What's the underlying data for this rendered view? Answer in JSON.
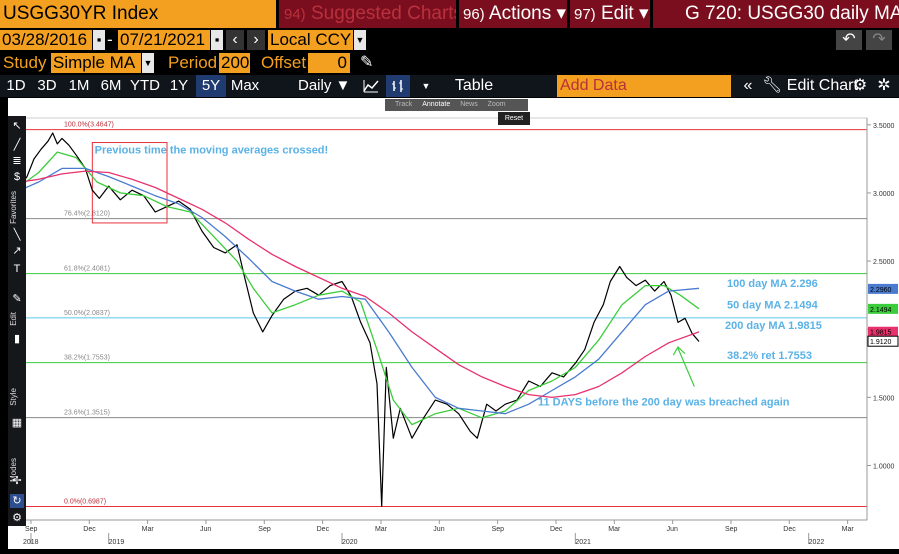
{
  "header": {
    "ticker": "USGG30YR Index",
    "suggested_num": "94)",
    "suggested_label": "Suggested Charts",
    "actions_num": "96)",
    "actions_label": "Actions ▾",
    "edit_num": "97)",
    "edit_label": "Edit ▾",
    "title": "G 720: USGG30 daily MA"
  },
  "range": {
    "start": "03/28/2016",
    "end": "07/21/2021",
    "currency": "Local CCY"
  },
  "study": {
    "label": "Study",
    "value": "Simple MA",
    "period_label": "Period",
    "period_value": "200",
    "offset_label": "Offset",
    "offset_value": "0"
  },
  "periods": [
    "1D",
    "3D",
    "1M",
    "6M",
    "YTD",
    "1Y",
    "5Y",
    "Max"
  ],
  "selected_period": "5Y",
  "frequency": "Daily ▼",
  "table_label": "Table",
  "add_data_placeholder": "Add Data",
  "edit_chart_label": "Edit Chart",
  "mini_toolbar": {
    "track": "Track",
    "annotate": "Annotate",
    "news": "News",
    "zoom": "Zoom",
    "reset": "Reset"
  },
  "sidebar_labels": {
    "favorites": "Favorites",
    "edit": "Edit",
    "style": "Style",
    "modes": "Modes"
  },
  "chart_data": {
    "type": "line",
    "title": "",
    "annotations": {
      "box_note": "Previous time the moving averages crossed!",
      "ma100": "100 day MA 2.296",
      "ma50": "50 day MA 2.1494",
      "ma200": "200 day MA 1.9815",
      "ret382": "38.2% ret 1.7553",
      "days_note": "11 DAYS before the 200 day was breached again"
    },
    "fib_levels": [
      {
        "label": "100.0%(3.4647)",
        "value": 3.4647,
        "color": "#e8323c"
      },
      {
        "label": "76.4%(2.8120)",
        "value": 2.812,
        "color": "#888888"
      },
      {
        "label": "61.8%(2.4081)",
        "value": 2.4081,
        "color": "#3ccc3c"
      },
      {
        "label": "50.0%(2.0837)",
        "value": 2.0837,
        "color": "#5cc8e8"
      },
      {
        "label": "38.2%(1.7553)",
        "value": 1.7553,
        "color": "#3ccc3c"
      },
      {
        "label": "23.6%(1.3515)",
        "value": 1.3515,
        "color": "#888888"
      },
      {
        "label": "0.0%(0.6987)",
        "value": 0.6987,
        "color": "#e8323c"
      }
    ],
    "y_ticks": [
      "3.5000",
      "3.0000",
      "2.5000",
      "2.0000",
      "1.5000",
      "1.0000"
    ],
    "y_tick_values": [
      3.5,
      3.0,
      2.5,
      2.0,
      1.5,
      1.0
    ],
    "ylim": [
      0.6,
      3.55
    ],
    "x_month_labels": [
      "Sep",
      "Dec",
      "Mar",
      "Jun",
      "Sep",
      "Dec",
      "Mar",
      "Jun",
      "Sep",
      "Dec",
      "Mar",
      "Jun",
      "Sep",
      "Dec",
      "Mar"
    ],
    "x_month_values": [
      2018.667,
      2018.917,
      2019.167,
      2019.417,
      2019.667,
      2019.917,
      2020.167,
      2020.417,
      2020.667,
      2020.917,
      2021.167,
      2021.417,
      2021.667,
      2021.917,
      2022.167
    ],
    "x_year_labels": [
      "2018",
      "2019",
      "2020",
      "2021",
      "2022"
    ],
    "x_year_values": [
      2018.667,
      2019.0,
      2020.0,
      2021.0,
      2022.0
    ],
    "xlim": [
      2018.62,
      2022.25
    ],
    "price_label_values": [
      {
        "text": "2.2960",
        "value": 2.296,
        "color": "#4a7bd0"
      },
      {
        "text": "2.1494",
        "value": 2.1494,
        "color": "#3ccc3c"
      },
      {
        "text": "1.9815",
        "value": 1.9815,
        "color": "#e8326e"
      },
      {
        "text": "1.9120",
        "value": 1.912,
        "color": "#ffffff"
      }
    ],
    "series": [
      {
        "name": "USGG30YR",
        "color": "#000000",
        "points": [
          [
            2018.62,
            3.05
          ],
          [
            2018.65,
            3.12
          ],
          [
            2018.68,
            3.25
          ],
          [
            2018.71,
            3.32
          ],
          [
            2018.74,
            3.38
          ],
          [
            2018.76,
            3.44
          ],
          [
            2018.78,
            3.36
          ],
          [
            2018.8,
            3.4
          ],
          [
            2018.83,
            3.35
          ],
          [
            2018.86,
            3.28
          ],
          [
            2018.9,
            3.18
          ],
          [
            2018.93,
            3.02
          ],
          [
            2018.96,
            2.96
          ],
          [
            2019.0,
            3.05
          ],
          [
            2019.05,
            2.95
          ],
          [
            2019.1,
            3.02
          ],
          [
            2019.15,
            2.98
          ],
          [
            2019.2,
            2.86
          ],
          [
            2019.25,
            2.9
          ],
          [
            2019.3,
            2.94
          ],
          [
            2019.35,
            2.88
          ],
          [
            2019.4,
            2.72
          ],
          [
            2019.45,
            2.6
          ],
          [
            2019.5,
            2.56
          ],
          [
            2019.55,
            2.62
          ],
          [
            2019.58,
            2.4
          ],
          [
            2019.62,
            2.12
          ],
          [
            2019.66,
            1.98
          ],
          [
            2019.7,
            2.1
          ],
          [
            2019.75,
            2.22
          ],
          [
            2019.8,
            2.28
          ],
          [
            2019.85,
            2.3
          ],
          [
            2019.9,
            2.25
          ],
          [
            2019.95,
            2.32
          ],
          [
            2020.0,
            2.35
          ],
          [
            2020.04,
            2.24
          ],
          [
            2020.08,
            2.05
          ],
          [
            2020.12,
            1.9
          ],
          [
            2020.15,
            1.6
          ],
          [
            2020.17,
            0.7
          ],
          [
            2020.19,
            1.72
          ],
          [
            2020.22,
            1.2
          ],
          [
            2020.25,
            1.42
          ],
          [
            2020.3,
            1.2
          ],
          [
            2020.35,
            1.35
          ],
          [
            2020.4,
            1.48
          ],
          [
            2020.45,
            1.45
          ],
          [
            2020.5,
            1.38
          ],
          [
            2020.55,
            1.25
          ],
          [
            2020.58,
            1.2
          ],
          [
            2020.62,
            1.45
          ],
          [
            2020.66,
            1.4
          ],
          [
            2020.7,
            1.45
          ],
          [
            2020.75,
            1.48
          ],
          [
            2020.8,
            1.62
          ],
          [
            2020.85,
            1.58
          ],
          [
            2020.9,
            1.68
          ],
          [
            2020.95,
            1.65
          ],
          [
            2021.0,
            1.75
          ],
          [
            2021.04,
            1.85
          ],
          [
            2021.08,
            2.05
          ],
          [
            2021.12,
            2.18
          ],
          [
            2021.15,
            2.35
          ],
          [
            2021.19,
            2.46
          ],
          [
            2021.22,
            2.38
          ],
          [
            2021.26,
            2.32
          ],
          [
            2021.3,
            2.36
          ],
          [
            2021.34,
            2.28
          ],
          [
            2021.38,
            2.35
          ],
          [
            2021.41,
            2.25
          ],
          [
            2021.44,
            2.05
          ],
          [
            2021.47,
            2.08
          ],
          [
            2021.5,
            1.97
          ],
          [
            2021.53,
            1.91
          ]
        ]
      },
      {
        "name": "50 day MA",
        "color": "#3ccc3c",
        "points": [
          [
            2018.62,
            3.05
          ],
          [
            2018.7,
            3.15
          ],
          [
            2018.78,
            3.3
          ],
          [
            2018.86,
            3.26
          ],
          [
            2018.95,
            3.08
          ],
          [
            2019.05,
            3.0
          ],
          [
            2019.15,
            2.98
          ],
          [
            2019.25,
            2.9
          ],
          [
            2019.35,
            2.86
          ],
          [
            2019.45,
            2.68
          ],
          [
            2019.55,
            2.5
          ],
          [
            2019.62,
            2.3
          ],
          [
            2019.7,
            2.12
          ],
          [
            2019.8,
            2.18
          ],
          [
            2019.9,
            2.25
          ],
          [
            2020.0,
            2.28
          ],
          [
            2020.08,
            2.2
          ],
          [
            2020.15,
            1.85
          ],
          [
            2020.22,
            1.48
          ],
          [
            2020.3,
            1.3
          ],
          [
            2020.4,
            1.38
          ],
          [
            2020.5,
            1.42
          ],
          [
            2020.6,
            1.35
          ],
          [
            2020.7,
            1.4
          ],
          [
            2020.8,
            1.55
          ],
          [
            2020.9,
            1.62
          ],
          [
            2021.0,
            1.72
          ],
          [
            2021.1,
            1.92
          ],
          [
            2021.2,
            2.18
          ],
          [
            2021.3,
            2.32
          ],
          [
            2021.38,
            2.32
          ],
          [
            2021.45,
            2.25
          ],
          [
            2021.53,
            2.15
          ]
        ]
      },
      {
        "name": "100 day MA",
        "color": "#4a7bd0",
        "points": [
          [
            2018.62,
            3.02
          ],
          [
            2018.7,
            3.08
          ],
          [
            2018.8,
            3.18
          ],
          [
            2018.9,
            3.18
          ],
          [
            2019.0,
            3.12
          ],
          [
            2019.1,
            3.05
          ],
          [
            2019.2,
            2.98
          ],
          [
            2019.3,
            2.92
          ],
          [
            2019.4,
            2.82
          ],
          [
            2019.5,
            2.68
          ],
          [
            2019.6,
            2.52
          ],
          [
            2019.7,
            2.35
          ],
          [
            2019.8,
            2.28
          ],
          [
            2019.9,
            2.22
          ],
          [
            2020.0,
            2.24
          ],
          [
            2020.1,
            2.22
          ],
          [
            2020.2,
            1.98
          ],
          [
            2020.3,
            1.72
          ],
          [
            2020.4,
            1.5
          ],
          [
            2020.5,
            1.42
          ],
          [
            2020.6,
            1.4
          ],
          [
            2020.7,
            1.38
          ],
          [
            2020.8,
            1.45
          ],
          [
            2020.9,
            1.55
          ],
          [
            2021.0,
            1.65
          ],
          [
            2021.1,
            1.78
          ],
          [
            2021.2,
            1.98
          ],
          [
            2021.3,
            2.18
          ],
          [
            2021.4,
            2.28
          ],
          [
            2021.53,
            2.3
          ]
        ]
      },
      {
        "name": "200 day MA",
        "color": "#e8326e",
        "points": [
          [
            2018.62,
            3.08
          ],
          [
            2018.7,
            3.1
          ],
          [
            2018.8,
            3.14
          ],
          [
            2018.9,
            3.16
          ],
          [
            2019.0,
            3.15
          ],
          [
            2019.1,
            3.1
          ],
          [
            2019.2,
            3.04
          ],
          [
            2019.3,
            2.96
          ],
          [
            2019.4,
            2.88
          ],
          [
            2019.5,
            2.78
          ],
          [
            2019.6,
            2.66
          ],
          [
            2019.7,
            2.55
          ],
          [
            2019.8,
            2.46
          ],
          [
            2019.9,
            2.38
          ],
          [
            2020.0,
            2.3
          ],
          [
            2020.1,
            2.24
          ],
          [
            2020.2,
            2.12
          ],
          [
            2020.3,
            1.98
          ],
          [
            2020.4,
            1.86
          ],
          [
            2020.5,
            1.74
          ],
          [
            2020.6,
            1.65
          ],
          [
            2020.7,
            1.58
          ],
          [
            2020.8,
            1.52
          ],
          [
            2020.9,
            1.5
          ],
          [
            2021.0,
            1.52
          ],
          [
            2021.1,
            1.58
          ],
          [
            2021.2,
            1.68
          ],
          [
            2021.3,
            1.8
          ],
          [
            2021.4,
            1.9
          ],
          [
            2021.53,
            1.98
          ]
        ]
      }
    ]
  }
}
